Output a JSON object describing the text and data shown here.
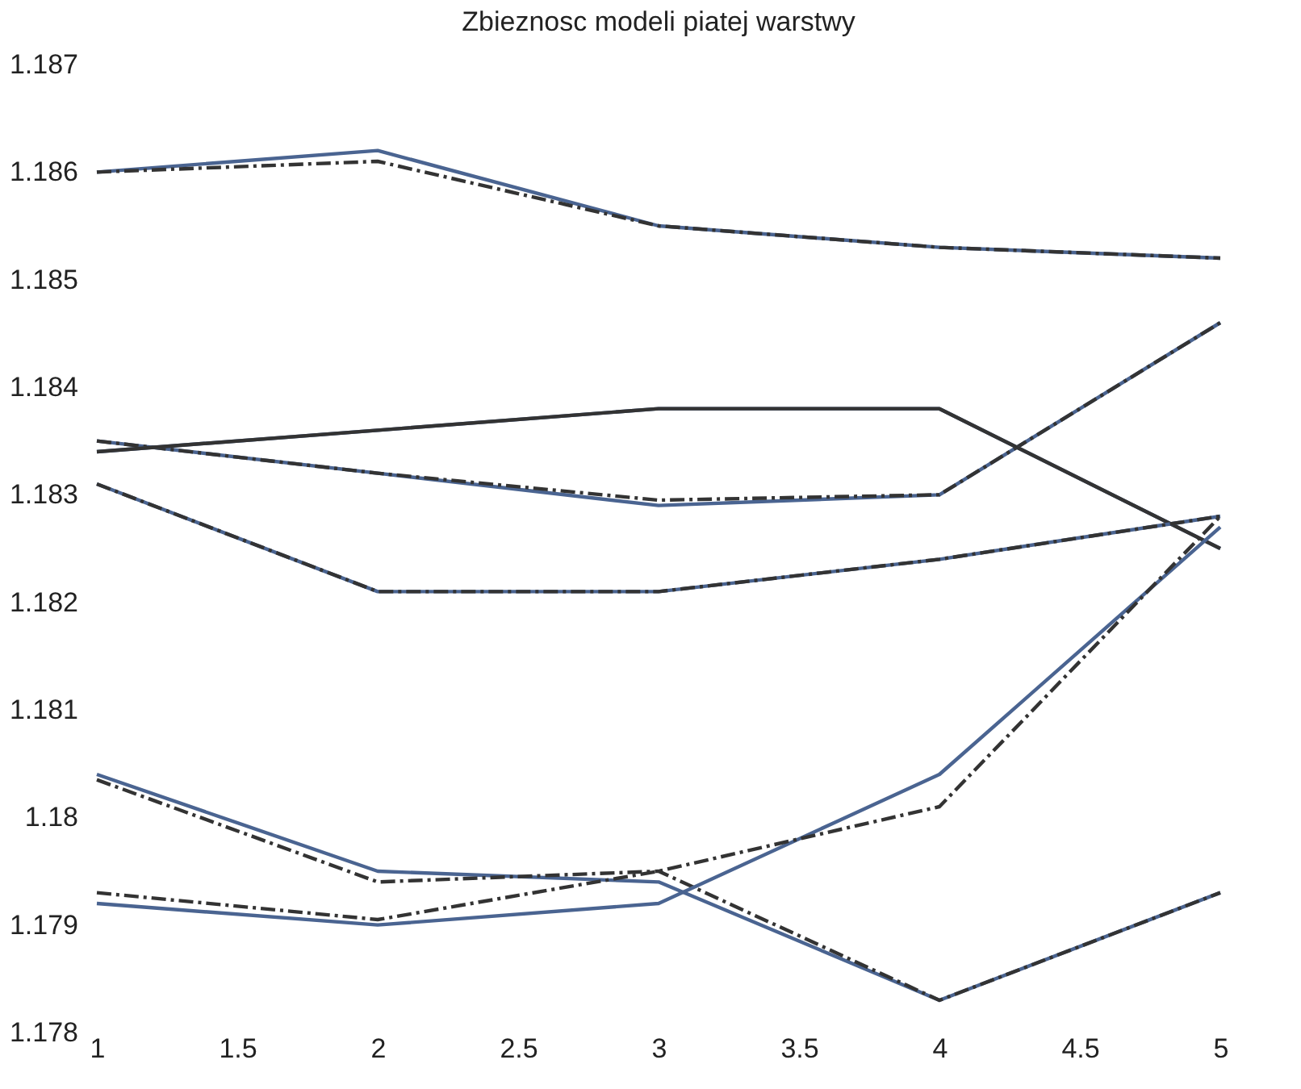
{
  "chart_data": {
    "type": "line",
    "title": "Zbieznosc modeli piatej warstwy",
    "x": [
      1,
      2,
      3,
      4,
      5
    ],
    "series": [
      {
        "color": "#4a6491",
        "line_style": "solid",
        "values": [
          1.186,
          1.1862,
          1.1855,
          1.1853,
          1.1852
        ]
      },
      {
        "color": "#333333",
        "line_style": "dashed",
        "values": [
          1.186,
          1.1861,
          1.1855,
          1.1853,
          1.1852
        ]
      },
      {
        "color": "#4a6491",
        "line_style": "solid",
        "values": [
          1.1835,
          1.1832,
          1.1829,
          1.183,
          1.1846
        ]
      },
      {
        "color": "#333333",
        "line_style": "dashed",
        "values": [
          1.1835,
          1.1832,
          1.18295,
          1.183,
          1.1846
        ]
      },
      {
        "color": "#4a6491",
        "line_style": "solid",
        "values": [
          1.1834,
          1.1836,
          1.1838,
          1.1838,
          1.1825
        ]
      },
      {
        "color": "#333333",
        "line_style": "solid",
        "values": [
          1.1834,
          1.1836,
          1.1838,
          1.1838,
          1.1825
        ]
      },
      {
        "color": "#4a6491",
        "line_style": "solid",
        "values": [
          1.1831,
          1.1821,
          1.1821,
          1.1824,
          1.1828
        ]
      },
      {
        "color": "#333333",
        "line_style": "dashed",
        "values": [
          1.1831,
          1.1821,
          1.1821,
          1.1824,
          1.1828
        ]
      },
      {
        "color": "#4a6491",
        "line_style": "solid",
        "values": [
          1.1804,
          1.1795,
          1.1794,
          1.1783,
          1.1793
        ]
      },
      {
        "color": "#333333",
        "line_style": "dashed",
        "values": [
          1.18035,
          1.1794,
          1.1795,
          1.1783,
          1.1793
        ]
      },
      {
        "color": "#4a6491",
        "line_style": "solid",
        "values": [
          1.1792,
          1.179,
          1.1792,
          1.1804,
          1.1827
        ]
      },
      {
        "color": "#333333",
        "line_style": "dashed",
        "values": [
          1.1793,
          1.17905,
          1.1795,
          1.1801,
          1.1828
        ]
      }
    ],
    "xlim": [
      1,
      5
    ],
    "xticks": [
      1,
      1.5,
      2,
      2.5,
      3,
      3.5,
      4,
      4.5,
      5
    ],
    "ylim": [
      1.178,
      1.187
    ],
    "yticks": [
      1.178,
      1.179,
      1.18,
      1.181,
      1.182,
      1.183,
      1.184,
      1.185,
      1.186,
      1.187
    ],
    "grid": false
  }
}
